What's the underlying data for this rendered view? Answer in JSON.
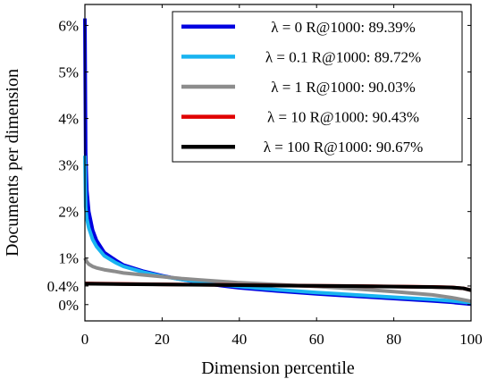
{
  "chart_data": {
    "type": "line",
    "xlabel": "Dimension percentile",
    "ylabel": "Documents per dimension",
    "xlim": [
      0,
      100
    ],
    "ylim": [
      -0.35,
      6.45
    ],
    "x_ticks": [
      {
        "value": 0,
        "label": "0"
      },
      {
        "value": 20,
        "label": "20"
      },
      {
        "value": 40,
        "label": "40"
      },
      {
        "value": 60,
        "label": "60"
      },
      {
        "value": 80,
        "label": "80"
      },
      {
        "value": 100,
        "label": "100"
      }
    ],
    "y_ticks": [
      {
        "value": 0,
        "label": "0%"
      },
      {
        "value": 0.4,
        "label": "0.4%"
      },
      {
        "value": 1,
        "label": "1%"
      },
      {
        "value": 2,
        "label": "2%"
      },
      {
        "value": 3,
        "label": "3%"
      },
      {
        "value": 4,
        "label": "4%"
      },
      {
        "value": 5,
        "label": "5%"
      },
      {
        "value": 6,
        "label": "6%"
      }
    ],
    "grid": false,
    "legend_position": "top-right",
    "series": [
      {
        "name": "λ = 0 R@1000: 89.39%",
        "color": "#0000e0",
        "points": [
          [
            0,
            6.15
          ],
          [
            0.2,
            3.25
          ],
          [
            0.5,
            2.45
          ],
          [
            1,
            2.0
          ],
          [
            2,
            1.6
          ],
          [
            3,
            1.38
          ],
          [
            5,
            1.12
          ],
          [
            8,
            0.95
          ],
          [
            10,
            0.85
          ],
          [
            15,
            0.72
          ],
          [
            20,
            0.62
          ],
          [
            25,
            0.54
          ],
          [
            30,
            0.47
          ],
          [
            35,
            0.41
          ],
          [
            40,
            0.36
          ],
          [
            50,
            0.29
          ],
          [
            60,
            0.23
          ],
          [
            70,
            0.18
          ],
          [
            80,
            0.13
          ],
          [
            90,
            0.08
          ],
          [
            95,
            0.05
          ],
          [
            100,
            0.01
          ]
        ]
      },
      {
        "name": "λ = 0.1 R@1000: 89.72%",
        "color": "#19b4f0",
        "points": [
          [
            0,
            3.2
          ],
          [
            0.2,
            2.1
          ],
          [
            0.5,
            1.85
          ],
          [
            1,
            1.65
          ],
          [
            2,
            1.4
          ],
          [
            3,
            1.25
          ],
          [
            5,
            1.05
          ],
          [
            8,
            0.9
          ],
          [
            10,
            0.82
          ],
          [
            15,
            0.7
          ],
          [
            20,
            0.61
          ],
          [
            25,
            0.54
          ],
          [
            30,
            0.48
          ],
          [
            35,
            0.43
          ],
          [
            40,
            0.39
          ],
          [
            50,
            0.32
          ],
          [
            60,
            0.26
          ],
          [
            70,
            0.21
          ],
          [
            80,
            0.16
          ],
          [
            90,
            0.11
          ],
          [
            95,
            0.08
          ],
          [
            100,
            0.04
          ]
        ]
      },
      {
        "name": "λ = 1 R@1000: 90.03%",
        "color": "#8c8c8c",
        "points": [
          [
            0,
            1.0
          ],
          [
            0.5,
            0.92
          ],
          [
            1,
            0.87
          ],
          [
            2,
            0.82
          ],
          [
            3,
            0.79
          ],
          [
            5,
            0.75
          ],
          [
            8,
            0.71
          ],
          [
            10,
            0.68
          ],
          [
            15,
            0.64
          ],
          [
            20,
            0.6
          ],
          [
            25,
            0.56
          ],
          [
            30,
            0.53
          ],
          [
            35,
            0.5
          ],
          [
            40,
            0.47
          ],
          [
            50,
            0.43
          ],
          [
            60,
            0.39
          ],
          [
            70,
            0.34
          ],
          [
            80,
            0.28
          ],
          [
            90,
            0.21
          ],
          [
            95,
            0.15
          ],
          [
            100,
            0.07
          ]
        ]
      },
      {
        "name": "λ = 10 R@1000: 90.43%",
        "color": "#e00000",
        "points": [
          [
            0,
            0.455
          ],
          [
            10,
            0.445
          ],
          [
            20,
            0.435
          ],
          [
            30,
            0.428
          ],
          [
            40,
            0.42
          ],
          [
            50,
            0.412
          ],
          [
            60,
            0.405
          ],
          [
            70,
            0.398
          ],
          [
            80,
            0.39
          ],
          [
            90,
            0.38
          ],
          [
            95,
            0.37
          ],
          [
            98,
            0.35
          ],
          [
            100,
            0.31
          ]
        ]
      },
      {
        "name": "λ = 100 R@1000: 90.67%",
        "color": "#000000",
        "points": [
          [
            0,
            0.45
          ],
          [
            10,
            0.44
          ],
          [
            20,
            0.432
          ],
          [
            30,
            0.425
          ],
          [
            40,
            0.418
          ],
          [
            50,
            0.41
          ],
          [
            60,
            0.403
          ],
          [
            70,
            0.396
          ],
          [
            80,
            0.388
          ],
          [
            90,
            0.378
          ],
          [
            95,
            0.368
          ],
          [
            98,
            0.35
          ],
          [
            100,
            0.31
          ]
        ]
      }
    ]
  }
}
